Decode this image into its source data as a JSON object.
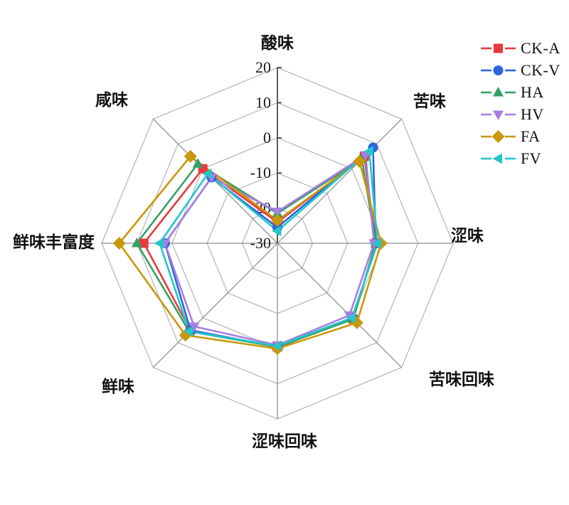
{
  "chart_data": {
    "type": "radar",
    "title": "",
    "axes": [
      {
        "id": "sour",
        "label": "酸味"
      },
      {
        "id": "bitter",
        "label": "苦味"
      },
      {
        "id": "astringent",
        "label": "涩味"
      },
      {
        "id": "bitter-aftertaste",
        "label": "苦味回味"
      },
      {
        "id": "astringent-aftertaste",
        "label": "涩味回味"
      },
      {
        "id": "umami",
        "label": "鲜味"
      },
      {
        "id": "umami-richness",
        "label": "鲜味丰富度"
      },
      {
        "id": "salty",
        "label": "咸味"
      }
    ],
    "radial_ticks": [
      20,
      10,
      0,
      -10,
      -20,
      -30
    ],
    "rmin": -30,
    "rmax": 20,
    "grid": true,
    "legend_position": "top-right",
    "series": [
      {
        "name": "CK-A",
        "color": "#e8393d",
        "marker": "square",
        "values": [
          -24.0,
          5.0,
          -2.0,
          0.5,
          -0.5,
          5.0,
          8.0,
          0.0
        ]
      },
      {
        "name": "CK-V",
        "color": "#2b65dd",
        "marker": "circle",
        "values": [
          -25.5,
          8.5,
          -2.0,
          0.5,
          -0.5,
          5.0,
          2.0,
          -3.5
        ]
      },
      {
        "name": "HA",
        "color": "#35a065",
        "marker": "triangle-up",
        "values": [
          -21.5,
          4.0,
          -2.0,
          0.5,
          -0.5,
          5.5,
          10.0,
          2.0
        ]
      },
      {
        "name": "HV",
        "color": "#a87ee3",
        "marker": "triangle-down",
        "values": [
          -21.0,
          5.5,
          -2.5,
          -1.0,
          -1.0,
          3.5,
          2.0,
          -3.5
        ]
      },
      {
        "name": "FA",
        "color": "#c9980a",
        "marker": "diamond",
        "values": [
          -23.5,
          3.0,
          -0.5,
          2.0,
          0.0,
          7.0,
          15.0,
          5.0
        ]
      },
      {
        "name": "FV",
        "color": "#25c6c8",
        "marker": "triangle-left",
        "values": [
          -26.5,
          7.0,
          -1.5,
          0.0,
          -0.8,
          5.5,
          3.5,
          -2.0
        ]
      }
    ],
    "style_colors": {
      "grid": "#aeaeae",
      "spoke": "#8a8a8a",
      "axis": "#3c3c3c",
      "text": "#1a1a1a"
    }
  }
}
